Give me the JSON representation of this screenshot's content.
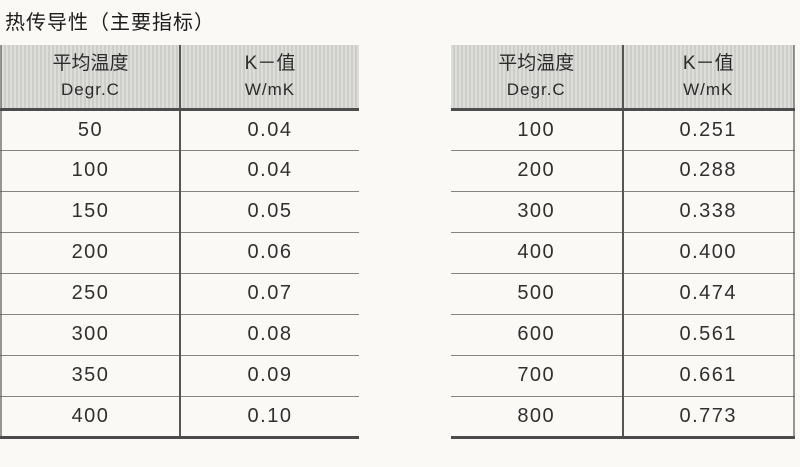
{
  "title": "热传导性（主要指标）",
  "tables": [
    {
      "id": "left",
      "headers": [
        {
          "line1": "平均温度",
          "line2": "Degr.C"
        },
        {
          "line1": "K－值",
          "line2": "W/mK"
        }
      ],
      "rows": [
        [
          "50",
          "0.04"
        ],
        [
          "100",
          "0.04"
        ],
        [
          "150",
          "0.05"
        ],
        [
          "200",
          "0.06"
        ],
        [
          "250",
          "0.07"
        ],
        [
          "300",
          "0.08"
        ],
        [
          "350",
          "0.09"
        ],
        [
          "400",
          "0.10"
        ]
      ]
    },
    {
      "id": "right",
      "headers": [
        {
          "line1": "平均温度",
          "line2": "Degr.C"
        },
        {
          "line1": "K－值",
          "line2": "W/mK"
        }
      ],
      "rows": [
        [
          "100",
          "0.251"
        ],
        [
          "200",
          "0.288"
        ],
        [
          "300",
          "0.338"
        ],
        [
          "400",
          "0.400"
        ],
        [
          "500",
          "0.474"
        ],
        [
          "600",
          "0.561"
        ],
        [
          "700",
          "0.661"
        ],
        [
          "800",
          "0.773"
        ]
      ]
    }
  ],
  "colors": {
    "page_bg": "#faf9f6",
    "header_bg": "#d5d4d1",
    "rule_dark": "#4c4c4c",
    "rule_light": "#848484",
    "text": "#2e2e2e"
  }
}
